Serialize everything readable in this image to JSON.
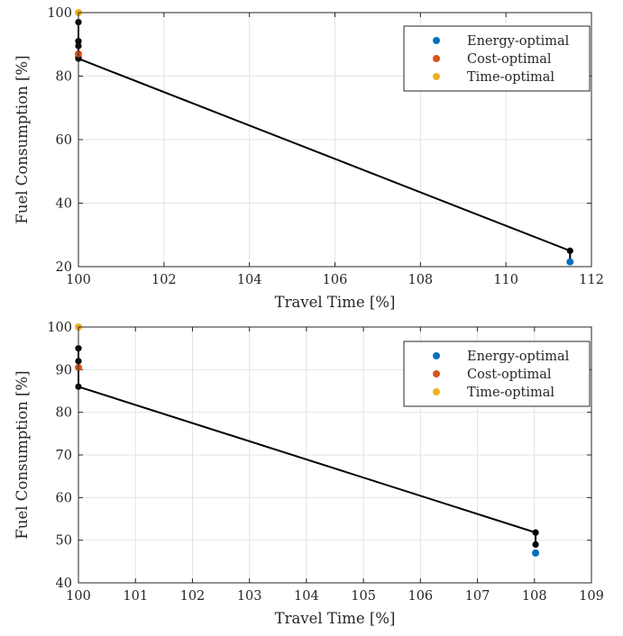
{
  "chart_data": [
    {
      "type": "scatter",
      "xlabel": "Travel Time [%]",
      "ylabel": "Fuel Consumption [%]",
      "xlim": [
        100,
        112
      ],
      "ylim": [
        20,
        100
      ],
      "xticks": [
        100,
        102,
        104,
        106,
        108,
        110,
        112
      ],
      "yticks": [
        20,
        40,
        60,
        80,
        100
      ],
      "grid": true,
      "legend_position": "top-right",
      "legend": [
        "Energy-optimal",
        "Cost-optimal",
        "Time-optimal"
      ],
      "frontier": {
        "color": "#000000",
        "x": [
          100,
          100,
          100,
          100,
          100,
          111.5,
          111.5
        ],
        "y": [
          97,
          91,
          89.5,
          86,
          85.5,
          25,
          21.5
        ]
      },
      "series": [
        {
          "name": "Energy-optimal",
          "color": "#0072BD",
          "x": [
            111.5
          ],
          "y": [
            21.5
          ]
        },
        {
          "name": "Cost-optimal",
          "color": "#D95319",
          "x": [
            100
          ],
          "y": [
            87
          ]
        },
        {
          "name": "Time-optimal",
          "color": "#EDB120",
          "x": [
            100
          ],
          "y": [
            100
          ]
        }
      ]
    },
    {
      "type": "scatter",
      "xlabel": "Travel Time [%]",
      "ylabel": "Fuel Consumption [%]",
      "xlim": [
        100,
        109
      ],
      "ylim": [
        40,
        100
      ],
      "xticks": [
        100,
        101,
        102,
        103,
        104,
        105,
        106,
        107,
        108,
        109
      ],
      "yticks": [
        40,
        50,
        60,
        70,
        80,
        90,
        100
      ],
      "grid": true,
      "legend_position": "top-right",
      "legend": [
        "Energy-optimal",
        "Cost-optimal",
        "Time-optimal"
      ],
      "frontier": {
        "color": "#000000",
        "x": [
          100,
          100,
          100,
          100,
          108.02,
          108.02
        ],
        "y": [
          95,
          92,
          90.5,
          86,
          51.8,
          49
        ]
      },
      "series": [
        {
          "name": "Energy-optimal",
          "color": "#0072BD",
          "x": [
            108.02
          ],
          "y": [
            47
          ]
        },
        {
          "name": "Cost-optimal",
          "color": "#D95319",
          "x": [
            100
          ],
          "y": [
            90.5
          ]
        },
        {
          "name": "Time-optimal",
          "color": "#EDB120",
          "x": [
            100
          ],
          "y": [
            100
          ]
        }
      ]
    }
  ]
}
